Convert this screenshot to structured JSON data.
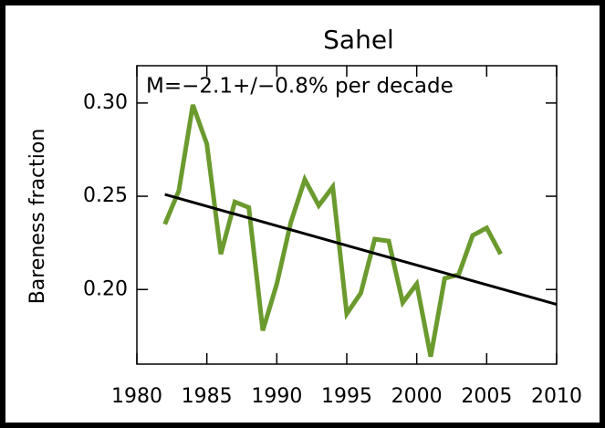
{
  "chart_data": {
    "type": "line",
    "title": "Sahel",
    "annotation": "M=−2.1+/−0.8% per decade",
    "y_label": "Bareness fraction",
    "x": [
      1982,
      1983,
      1984,
      1985,
      1986,
      1987,
      1988,
      1989,
      1990,
      1991,
      1992,
      1993,
      1994,
      1995,
      1996,
      1997,
      1998,
      1999,
      2000,
      2001,
      2002,
      2003,
      2004,
      2005,
      2006
    ],
    "values": [
      0.235,
      0.253,
      0.299,
      0.278,
      0.219,
      0.247,
      0.244,
      0.178,
      0.203,
      0.236,
      0.259,
      0.245,
      0.255,
      0.187,
      0.198,
      0.227,
      0.226,
      0.193,
      0.203,
      0.164,
      0.206,
      0.208,
      0.229,
      0.233,
      0.219
    ],
    "color": "#6b9a2e",
    "trend_line": {
      "x": [
        1982,
        2010
      ],
      "values": [
        0.251,
        0.192
      ],
      "color": "#000000"
    },
    "xlim": [
      1980,
      2010
    ],
    "xticks": [
      1980,
      1985,
      1990,
      1995,
      2000,
      2005,
      2010
    ],
    "ylim": [
      0.16,
      0.32
    ],
    "yticks": [
      {
        "value": 0.2,
        "label": "0.20"
      },
      {
        "value": 0.25,
        "label": "0.25"
      },
      {
        "value": 0.3,
        "label": "0.30"
      }
    ]
  }
}
